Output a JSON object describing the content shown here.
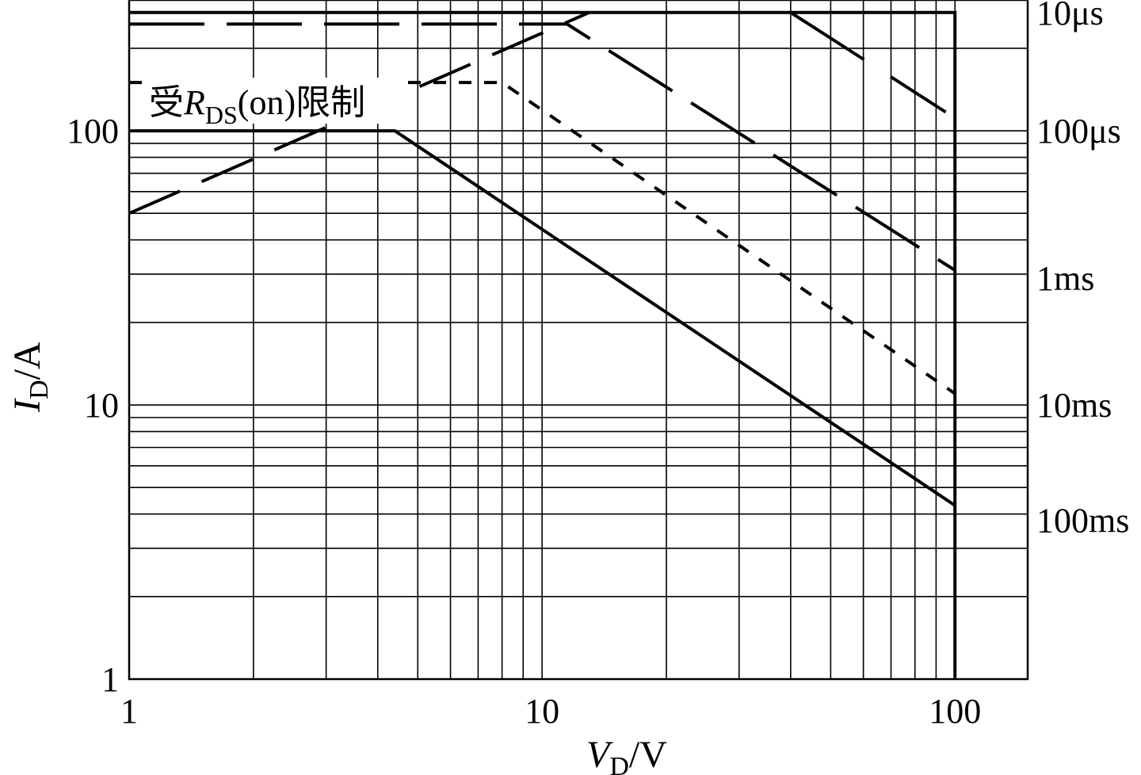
{
  "chart_data": {
    "type": "line",
    "x_scale": "log",
    "y_scale": "log",
    "xlim": [
      1,
      150
    ],
    "ylim": [
      1,
      300
    ],
    "grid": true,
    "xlabel": {
      "main": "V",
      "sub": "D",
      "unit": "/V"
    },
    "ylabel": {
      "main": "I",
      "sub": "D",
      "unit": "/A"
    },
    "x_ticks": [
      {
        "value": 1,
        "label": "1"
      },
      {
        "value": 10,
        "label": "10"
      },
      {
        "value": 100,
        "label": "100"
      }
    ],
    "y_ticks": [
      {
        "value": 1,
        "label": "1"
      },
      {
        "value": 10,
        "label": "10"
      },
      {
        "value": 100,
        "label": "100"
      }
    ],
    "annotation": {
      "prefix": "受",
      "main": "R",
      "sub": "DS",
      "suffix": "(on)限制"
    },
    "series": [
      {
        "name": "10μs",
        "style": "solid",
        "label_y": 270,
        "points": [
          [
            1,
            270
          ],
          [
            100,
            270
          ],
          [
            100,
            1
          ]
        ]
      },
      {
        "name": "100μs",
        "style": "dashed-long",
        "label_y": 100,
        "points": [
          [
            1,
            245
          ],
          [
            11.5,
            245
          ],
          [
            100,
            31
          ]
        ]
      },
      {
        "name": "1ms",
        "style": "dotted",
        "label_y": 29,
        "points": [
          [
            1,
            150
          ],
          [
            8,
            150
          ],
          [
            100,
            11
          ]
        ]
      },
      {
        "name": "10ms",
        "style": "solid",
        "label_y": 10,
        "points": [
          [
            1,
            100
          ],
          [
            4.4,
            100
          ],
          [
            100,
            4.3
          ]
        ]
      },
      {
        "name": "100ms",
        "style": "solid-dash",
        "label_y": 3.8,
        "points": [
          [
            40,
            270
          ],
          [
            95,
            117
          ]
        ]
      },
      {
        "name": "",
        "style": "rds-limit",
        "label_y": null,
        "points": [
          [
            1,
            50
          ],
          [
            13,
            270
          ]
        ]
      }
    ]
  }
}
